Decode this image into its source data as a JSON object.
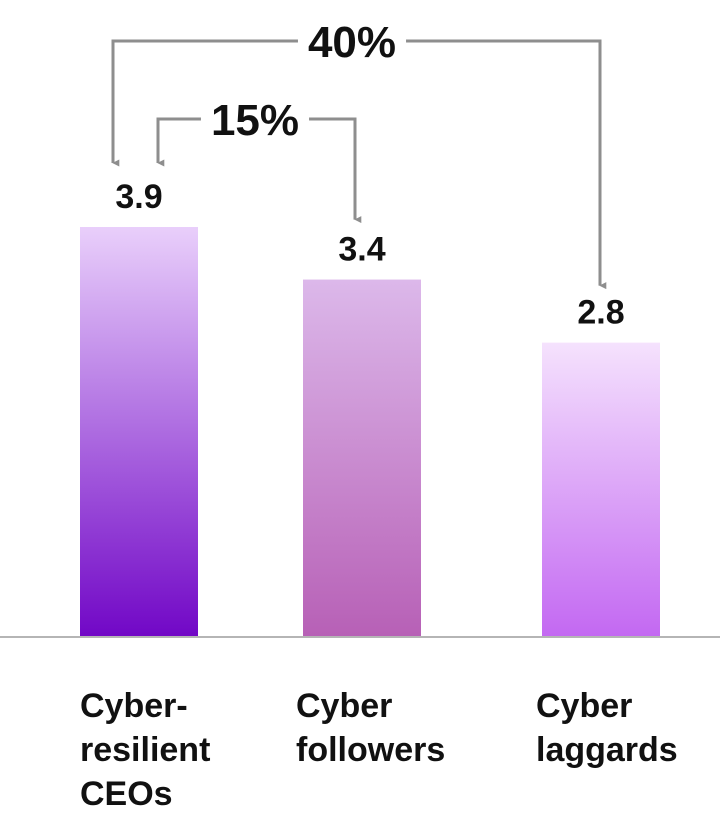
{
  "chart_data": {
    "type": "bar",
    "categories": [
      "Cyber-\nresilient\nCEOs",
      "Cyber\nfollowers",
      "Cyber\nlaggards"
    ],
    "values": [
      3.9,
      3.4,
      2.8
    ],
    "value_labels": [
      "3.9",
      "3.4",
      "2.8"
    ],
    "bar_colors": [
      {
        "top": "#e9cffb",
        "bottom": "#7107c6"
      },
      {
        "top": "#dcb8ea",
        "bottom": "#b760b6"
      },
      {
        "top": "#f5e2fd",
        "bottom": "#c368f2"
      }
    ],
    "annotations": [
      {
        "label": "40%",
        "from": 0,
        "to": 2
      },
      {
        "label": "15%",
        "from": 0,
        "to": 1
      }
    ],
    "title": "",
    "xlabel": "",
    "ylabel": "",
    "ylim": [
      0,
      3.9
    ],
    "grid": false,
    "legend": "none",
    "connector_color": "#8e8e8e",
    "baseline_color": "#b5b5b5"
  }
}
